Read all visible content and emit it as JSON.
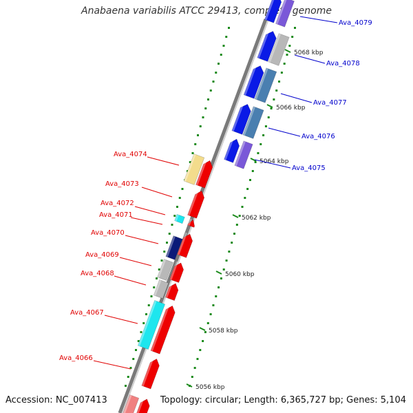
{
  "title": "Anabaena variabilis ATCC 29413, complete genome",
  "footer": {
    "accession": "Accession: NC_007413",
    "topology": "Topology: circular; Length: 6,365,727 bp; Genes: 5,104"
  },
  "colors": {
    "backbone_dark": "#7a7a7a",
    "backbone_light": "#d0d0d0",
    "tick": "#1a8a1a",
    "label_blue": "#0000cc",
    "label_red": "#e00000",
    "red_gene": "#ee0000",
    "blue_gene": "#0a1ae6",
    "steel_gene": "#4a7fb0",
    "gray_gene": "#b8b8b8",
    "cyan_gene": "#1ee6ee",
    "yellow_gene": "#f3dc8c",
    "violet_gene": "#7a58d8",
    "navy_gene": "#0a1a78",
    "pink_gene": "#f08080"
  },
  "scale_labels": [
    "5068 kbp",
    "5066 kbp",
    "5064 kbp",
    "5062 kbp",
    "5060 kbp",
    "5058 kbp",
    "5056 kbp"
  ],
  "right_labels": [
    "Ava_4079",
    "Ava_4078",
    "Ava_4077",
    "Ava_4076",
    "Ava_4075"
  ],
  "left_labels": [
    "Ava_4074",
    "Ava_4073",
    "Ava_4072",
    "Ava_4071",
    "Ava_4070",
    "Ava_4069",
    "Ava_4068",
    "Ava_4067",
    "Ava_4066"
  ]
}
